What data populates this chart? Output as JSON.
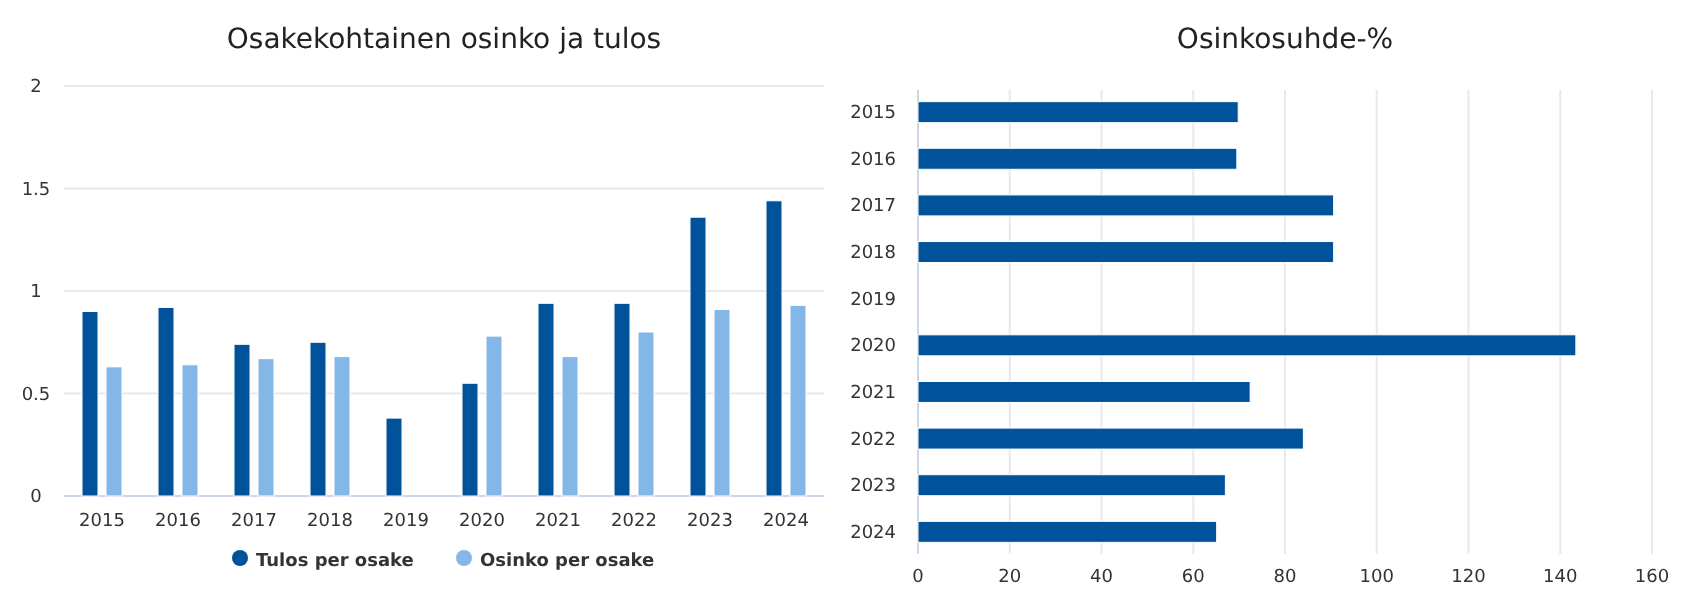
{
  "chart_data": [
    {
      "type": "bar",
      "title": "Osakekohtainen osinko ja tulos",
      "categories": [
        "2015",
        "2016",
        "2017",
        "2018",
        "2019",
        "2020",
        "2021",
        "2022",
        "2023",
        "2024"
      ],
      "series": [
        {
          "name": "Tulos per osake",
          "color": "#00529b",
          "values": [
            0.9,
            0.92,
            0.74,
            0.75,
            0.38,
            0.55,
            0.94,
            0.94,
            1.36,
            1.44
          ]
        },
        {
          "name": "Osinko per osake",
          "color": "#85b6e8",
          "values": [
            0.63,
            0.64,
            0.67,
            0.68,
            null,
            0.78,
            0.68,
            0.8,
            0.91,
            0.93
          ]
        }
      ],
      "ylim": [
        0,
        2
      ],
      "yticks": [
        0,
        0.5,
        1,
        1.5,
        2
      ],
      "grid": "y",
      "legend": "bottom"
    },
    {
      "type": "bar",
      "title": "Osinkosuhde-%",
      "orientation": "horizontal",
      "categories": [
        "2015",
        "2016",
        "2017",
        "2018",
        "2019",
        "2020",
        "2021",
        "2022",
        "2023",
        "2024"
      ],
      "series": [
        {
          "color": "#00529b",
          "values": [
            69.8,
            69.5,
            90.6,
            90.6,
            null,
            143.4,
            72.4,
            84,
            67,
            65.1
          ]
        }
      ],
      "xlim": [
        0,
        160
      ],
      "xticks": [
        0,
        20,
        40,
        60,
        80,
        100,
        120,
        140,
        160
      ],
      "grid": "x"
    }
  ]
}
